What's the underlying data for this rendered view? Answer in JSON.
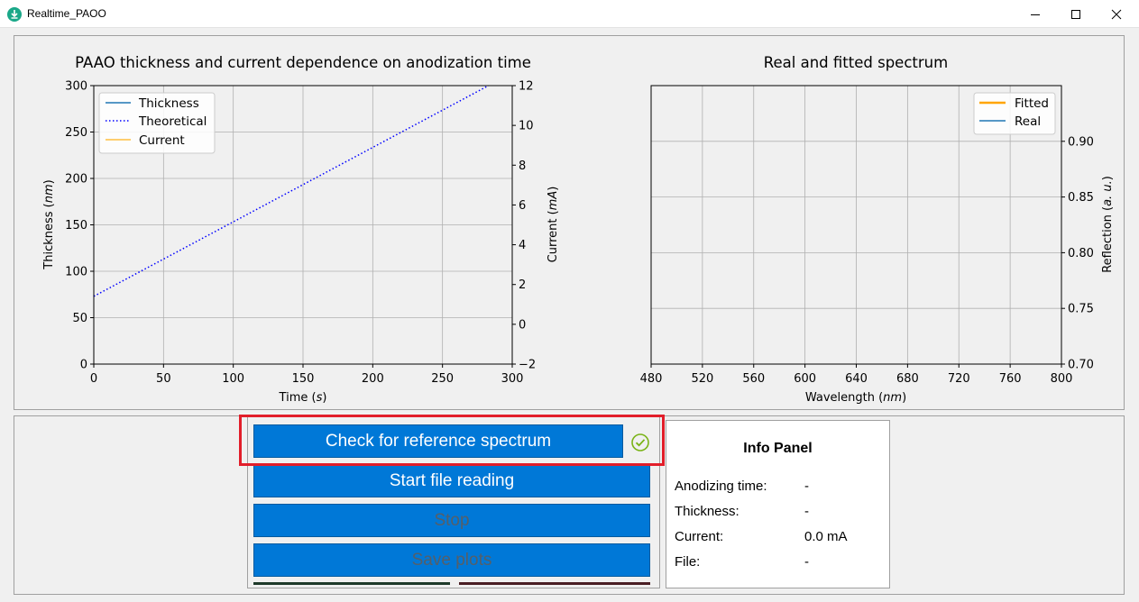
{
  "window": {
    "title": "Realtime_PAOO",
    "icon": "app-icon",
    "controls": [
      "minimize-icon",
      "maximize-icon",
      "close-icon"
    ]
  },
  "chart_data": [
    {
      "type": "line",
      "title": "PAAO thickness and current dependence on anodization time",
      "xlabel_main": "Time (",
      "xlabel_unit": "s",
      "ylabel_main": "Thickness (",
      "ylabel_unit": "nm",
      "y2label_main": "Current (",
      "y2label_unit": "mA",
      "xlim": [
        0,
        300
      ],
      "ylim": [
        0,
        300
      ],
      "y2lim": [
        -2,
        12
      ],
      "xticks": [
        0,
        50,
        100,
        150,
        200,
        250,
        300
      ],
      "yticks": [
        0,
        50,
        100,
        150,
        200,
        250,
        300
      ],
      "y2ticks": [
        -2,
        0,
        2,
        4,
        6,
        8,
        10,
        12
      ],
      "y2tick_labels": [
        "−2",
        "0",
        "2",
        "4",
        "6",
        "8",
        "10",
        "12"
      ],
      "grid": true,
      "legend_position": "upper-left",
      "series": [
        {
          "name": "Thickness",
          "color": "#1f77b4",
          "style": "solid",
          "x": [],
          "y": []
        },
        {
          "name": "Theoretical",
          "color": "#0000ff",
          "style": "dotted",
          "x": [
            0,
            283
          ],
          "y": [
            73,
            300
          ]
        },
        {
          "name": "Current",
          "color": "#ffbf40",
          "style": "solid",
          "x": [],
          "y": []
        }
      ]
    },
    {
      "type": "line",
      "title": "Real and fitted spectrum",
      "xlabel_main": "Wavelength (",
      "xlabel_unit": "nm",
      "ylabel_main": "Reflection (",
      "ylabel_unit": "a. u.",
      "xlim": [
        480,
        800
      ],
      "ylim": [
        0.7,
        0.95
      ],
      "xticks": [
        480,
        520,
        560,
        600,
        640,
        680,
        720,
        760,
        800
      ],
      "yticks": [
        0.7,
        0.75,
        0.8,
        0.85,
        0.9
      ],
      "ytick_labels": [
        "0.70",
        "0.75",
        "0.80",
        "0.85",
        "0.90"
      ],
      "grid": true,
      "legend_position": "upper-right",
      "series": [
        {
          "name": "Fitted",
          "color": "#ffa500",
          "style": "solid",
          "x": [],
          "y": []
        },
        {
          "name": "Real",
          "color": "#1f77b4",
          "style": "solid",
          "x": [],
          "y": []
        }
      ]
    }
  ],
  "controls": {
    "check_reference": {
      "label": "Check for reference spectrum",
      "enabled": true,
      "status_icon": "check-circle-icon"
    },
    "start_reading": {
      "label": "Start file reading",
      "enabled": true
    },
    "stop": {
      "label": "Stop",
      "enabled": false
    },
    "save_plots": {
      "label": "Save plots",
      "enabled": false
    }
  },
  "info_panel": {
    "title": "Info Panel",
    "rows": [
      {
        "label": "Anodizing time:",
        "value": "-"
      },
      {
        "label": "Thickness:",
        "value": "-"
      },
      {
        "label": "Current:",
        "value": "0.0 mA"
      },
      {
        "label": "File:",
        "value": "-"
      }
    ]
  },
  "colors": {
    "accent": "#0078d7",
    "highlight": "#e21e2a",
    "status_ok": "#7ab317"
  }
}
